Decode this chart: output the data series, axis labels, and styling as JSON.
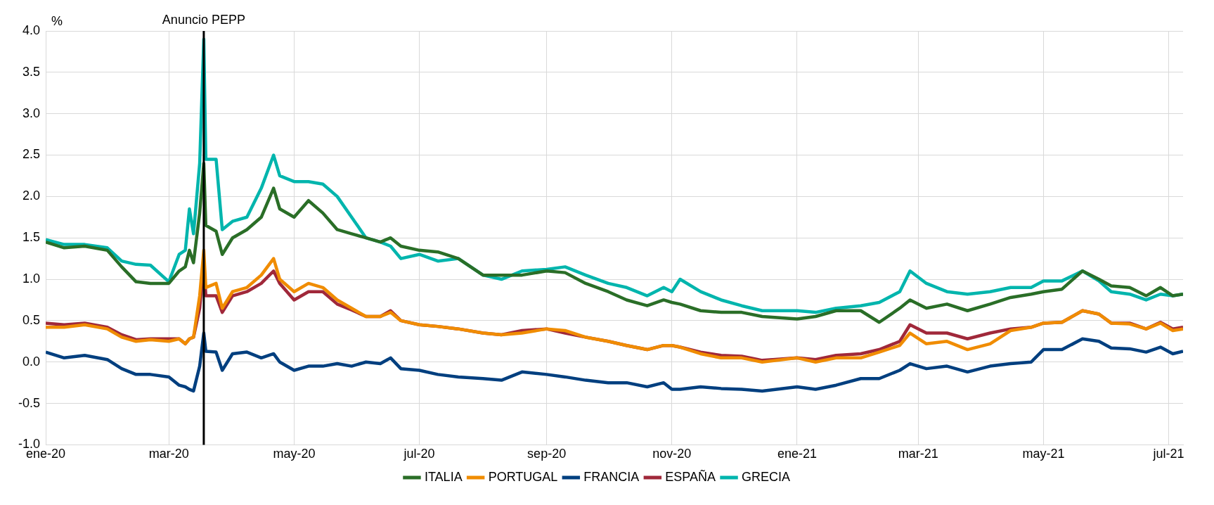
{
  "chart_data": {
    "type": "line",
    "ylabel": "%",
    "xlim": [
      "2020-01-01",
      "2021-07-08"
    ],
    "ylim": [
      -1,
      4
    ],
    "yticks": [
      {
        "value": -1,
        "label": "-1.0"
      },
      {
        "value": -0.5,
        "label": "-0.5"
      },
      {
        "value": 0,
        "label": "0.0"
      },
      {
        "value": 0.5,
        "label": "0.5"
      },
      {
        "value": 1,
        "label": "1.0"
      },
      {
        "value": 1.5,
        "label": "1.5"
      },
      {
        "value": 2,
        "label": "2.0"
      },
      {
        "value": 2.5,
        "label": "2.5"
      },
      {
        "value": 3,
        "label": "3.0"
      },
      {
        "value": 3.5,
        "label": "3.5"
      },
      {
        "value": 4,
        "label": "4.0"
      }
    ],
    "xticks": [
      {
        "value": "2020-01-01",
        "label": "ene-20"
      },
      {
        "value": "2020-03-01",
        "label": "mar-20"
      },
      {
        "value": "2020-05-01",
        "label": "may-20"
      },
      {
        "value": "2020-07-01",
        "label": "jul-20"
      },
      {
        "value": "2020-09-01",
        "label": "sep-20"
      },
      {
        "value": "2020-11-01",
        "label": "nov-20"
      },
      {
        "value": "2021-01-01",
        "label": "ene-21"
      },
      {
        "value": "2021-03-01",
        "label": "mar-21"
      },
      {
        "value": "2021-05-01",
        "label": "may-21"
      },
      {
        "value": "2021-07-01",
        "label": "jul-21"
      }
    ],
    "grid": true,
    "legend": "bottom",
    "marker": "none",
    "line_style": "solid",
    "ref_lines": [
      {
        "axis": "x",
        "value": "2020-03-18",
        "label": "Anuncio PEPP",
        "color": "#000000"
      }
    ],
    "x": [
      "2020-01-01",
      "2020-01-10",
      "2020-01-20",
      "2020-01-31",
      "2020-02-07",
      "2020-02-14",
      "2020-02-21",
      "2020-03-01",
      "2020-03-06",
      "2020-03-09",
      "2020-03-11",
      "2020-03-13",
      "2020-03-16",
      "2020-03-18",
      "2020-03-19",
      "2020-03-24",
      "2020-03-27",
      "2020-04-01",
      "2020-04-08",
      "2020-04-15",
      "2020-04-21",
      "2020-04-24",
      "2020-05-01",
      "2020-05-08",
      "2020-05-15",
      "2020-05-22",
      "2020-05-29",
      "2020-06-05",
      "2020-06-12",
      "2020-06-17",
      "2020-06-22",
      "2020-07-01",
      "2020-07-10",
      "2020-07-20",
      "2020-08-01",
      "2020-08-10",
      "2020-08-20",
      "2020-09-01",
      "2020-09-10",
      "2020-09-20",
      "2020-10-01",
      "2020-10-10",
      "2020-10-20",
      "2020-10-28",
      "2020-11-01",
      "2020-11-05",
      "2020-11-15",
      "2020-11-25",
      "2020-12-05",
      "2020-12-15",
      "2021-01-01",
      "2021-01-10",
      "2021-01-20",
      "2021-02-01",
      "2021-02-10",
      "2021-02-20",
      "2021-02-25",
      "2021-03-05",
      "2021-03-15",
      "2021-03-25",
      "2021-04-05",
      "2021-04-15",
      "2021-04-25",
      "2021-05-01",
      "2021-05-10",
      "2021-05-20",
      "2021-05-28",
      "2021-06-03",
      "2021-06-12",
      "2021-06-20",
      "2021-06-27",
      "2021-07-03",
      "2021-07-08"
    ],
    "series": [
      {
        "name": "ITALIA",
        "color": "#2a6e27",
        "values": [
          1.45,
          1.38,
          1.4,
          1.35,
          1.15,
          0.97,
          0.95,
          0.95,
          1.1,
          1.15,
          1.35,
          1.2,
          1.8,
          2.4,
          1.65,
          1.58,
          1.3,
          1.5,
          1.6,
          1.75,
          2.1,
          1.85,
          1.75,
          1.95,
          1.8,
          1.6,
          1.55,
          1.5,
          1.45,
          1.5,
          1.4,
          1.35,
          1.33,
          1.25,
          1.05,
          1.05,
          1.05,
          1.1,
          1.08,
          0.95,
          0.85,
          0.75,
          0.68,
          0.75,
          0.72,
          0.7,
          0.62,
          0.6,
          0.6,
          0.55,
          0.52,
          0.55,
          0.62,
          0.62,
          0.48,
          0.65,
          0.75,
          0.65,
          0.7,
          0.62,
          0.7,
          0.78,
          0.82,
          0.85,
          0.88,
          1.1,
          1.0,
          0.92,
          0.9,
          0.8,
          0.9,
          0.8,
          0.82
        ]
      },
      {
        "name": "PORTUGAL",
        "color": "#f08c00",
        "values": [
          0.42,
          0.42,
          0.45,
          0.4,
          0.3,
          0.25,
          0.27,
          0.25,
          0.28,
          0.22,
          0.28,
          0.3,
          0.8,
          1.35,
          0.9,
          0.95,
          0.65,
          0.85,
          0.9,
          1.05,
          1.25,
          1.0,
          0.85,
          0.95,
          0.9,
          0.75,
          0.65,
          0.55,
          0.55,
          0.6,
          0.5,
          0.45,
          0.43,
          0.4,
          0.35,
          0.33,
          0.35,
          0.4,
          0.38,
          0.3,
          0.25,
          0.2,
          0.15,
          0.2,
          0.2,
          0.18,
          0.1,
          0.05,
          0.05,
          0.0,
          0.05,
          0.0,
          0.05,
          0.05,
          0.12,
          0.2,
          0.35,
          0.22,
          0.25,
          0.15,
          0.22,
          0.38,
          0.42,
          0.47,
          0.48,
          0.62,
          0.58,
          0.47,
          0.46,
          0.4,
          0.47,
          0.38,
          0.4
        ]
      },
      {
        "name": "FRANCIA",
        "color": "#003f7f",
        "values": [
          0.12,
          0.05,
          0.08,
          0.03,
          -0.08,
          -0.15,
          -0.15,
          -0.18,
          -0.28,
          -0.3,
          -0.33,
          -0.35,
          -0.05,
          0.35,
          0.13,
          0.12,
          -0.1,
          0.1,
          0.12,
          0.05,
          0.1,
          0.0,
          -0.1,
          -0.05,
          -0.05,
          -0.02,
          -0.05,
          0.0,
          -0.02,
          0.05,
          -0.08,
          -0.1,
          -0.15,
          -0.18,
          -0.2,
          -0.22,
          -0.12,
          -0.15,
          -0.18,
          -0.22,
          -0.25,
          -0.25,
          -0.3,
          -0.25,
          -0.33,
          -0.33,
          -0.3,
          -0.32,
          -0.33,
          -0.35,
          -0.3,
          -0.33,
          -0.28,
          -0.2,
          -0.2,
          -0.1,
          -0.02,
          -0.08,
          -0.05,
          -0.12,
          -0.05,
          -0.02,
          0.0,
          0.15,
          0.15,
          0.28,
          0.25,
          0.17,
          0.16,
          0.12,
          0.18,
          0.1,
          0.13
        ]
      },
      {
        "name": "ESPAÑA",
        "color": "#a0283a",
        "values": [
          0.47,
          0.45,
          0.47,
          0.42,
          0.33,
          0.27,
          0.28,
          0.28,
          0.28,
          0.22,
          0.28,
          0.3,
          0.65,
          1.2,
          0.8,
          0.8,
          0.6,
          0.8,
          0.85,
          0.95,
          1.1,
          0.95,
          0.75,
          0.85,
          0.85,
          0.7,
          0.63,
          0.55,
          0.55,
          0.62,
          0.5,
          0.45,
          0.43,
          0.4,
          0.35,
          0.33,
          0.38,
          0.4,
          0.35,
          0.3,
          0.25,
          0.2,
          0.15,
          0.2,
          0.2,
          0.18,
          0.12,
          0.08,
          0.07,
          0.02,
          0.05,
          0.03,
          0.08,
          0.1,
          0.15,
          0.25,
          0.45,
          0.35,
          0.35,
          0.28,
          0.35,
          0.4,
          0.42,
          0.47,
          0.48,
          0.62,
          0.58,
          0.47,
          0.47,
          0.4,
          0.48,
          0.4,
          0.42
        ]
      },
      {
        "name": "GRECIA",
        "color": "#00b5ad",
        "values": [
          1.48,
          1.42,
          1.42,
          1.38,
          1.22,
          1.18,
          1.17,
          0.97,
          1.3,
          1.35,
          1.85,
          1.55,
          2.4,
          3.9,
          2.45,
          2.45,
          1.6,
          1.7,
          1.75,
          2.1,
          2.5,
          2.25,
          2.18,
          2.18,
          2.15,
          2.0,
          1.75,
          1.5,
          1.45,
          1.4,
          1.25,
          1.3,
          1.22,
          1.25,
          1.05,
          1.0,
          1.1,
          1.12,
          1.15,
          1.05,
          0.95,
          0.9,
          0.8,
          0.9,
          0.85,
          1.0,
          0.85,
          0.75,
          0.68,
          0.62,
          0.62,
          0.6,
          0.65,
          0.68,
          0.72,
          0.85,
          1.1,
          0.95,
          0.85,
          0.82,
          0.85,
          0.9,
          0.9,
          0.98,
          0.98,
          1.1,
          0.98,
          0.85,
          0.82,
          0.75,
          0.82,
          0.8,
          0.82
        ]
      }
    ]
  }
}
